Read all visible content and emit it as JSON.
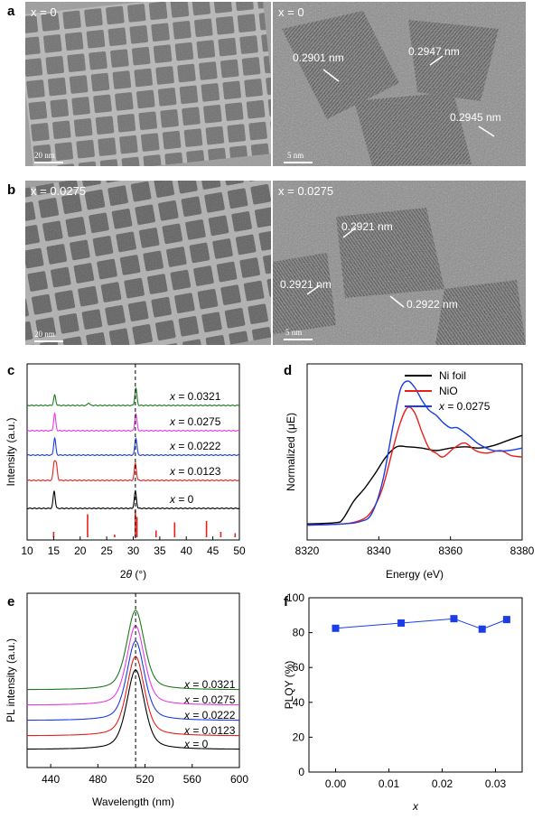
{
  "figure": {
    "panels": {
      "a": "a",
      "b": "b",
      "c": "c",
      "d": "d",
      "e": "e",
      "f": "f"
    },
    "tem": {
      "a_left": {
        "label": "x = 0",
        "scale": "20 nm"
      },
      "a_right": {
        "label": "x = 0",
        "scale": "5 nm",
        "spacings": [
          "0.2901 nm",
          "0.2947 nm",
          "0.2945 nm"
        ]
      },
      "b_left": {
        "label": "x = 0.0275",
        "scale": "20 nm"
      },
      "b_right": {
        "label": "x = 0.0275",
        "scale": "5 nm",
        "spacings": [
          "0.2921 nm",
          "0.2921 nm",
          "0.2922 nm"
        ]
      }
    }
  },
  "chart_data": [
    {
      "panel": "c",
      "type": "line",
      "xlabel": "2θ (°)",
      "ylabel": "Intensity (a.u.)",
      "xlim": [
        10,
        50
      ],
      "xticks": [
        10,
        15,
        20,
        25,
        30,
        35,
        40,
        45,
        50
      ],
      "dashed_x": 30.4,
      "series": [
        {
          "name": "x = 0",
          "color": "#000000",
          "peaks": [
            [
              15.1,
              1.0
            ],
            [
              30.4,
              1.0
            ]
          ]
        },
        {
          "name": "x = 0.0123",
          "color": "#e8201c",
          "peaks": [
            [
              15.1,
              1.0
            ],
            [
              15.5,
              0.9
            ],
            [
              30.4,
              1.0
            ]
          ]
        },
        {
          "name": "x = 0.0222",
          "color": "#1a3de8",
          "peaks": [
            [
              15.2,
              1.0
            ],
            [
              30.5,
              1.0
            ]
          ]
        },
        {
          "name": "x = 0.0275",
          "color": "#e63ce6",
          "peaks": [
            [
              15.2,
              1.0
            ],
            [
              30.5,
              1.0
            ]
          ]
        },
        {
          "name": "x = 0.0321",
          "color": "#1f7a1f",
          "peaks": [
            [
              15.2,
              0.6
            ],
            [
              21.6,
              0.15
            ],
            [
              30.5,
              1.0
            ]
          ]
        }
      ],
      "reference_sticks": [
        [
          15.0,
          0.2
        ],
        [
          21.4,
          0.85
        ],
        [
          26.5,
          0.1
        ],
        [
          30.4,
          1.0
        ],
        [
          30.7,
          0.75
        ],
        [
          34.3,
          0.25
        ],
        [
          37.8,
          0.55
        ],
        [
          43.8,
          0.6
        ],
        [
          46.5,
          0.2
        ],
        [
          49.2,
          0.15
        ]
      ]
    },
    {
      "panel": "d",
      "type": "line",
      "xlabel": "Energy (eV)",
      "ylabel": "Normalized (μE)",
      "xlim": [
        8320,
        8380
      ],
      "xticks": [
        8320,
        8340,
        8360,
        8380
      ],
      "series": [
        {
          "name": "Ni foil",
          "color": "#000000",
          "points": [
            [
              8320,
              0.02
            ],
            [
              8328,
              0.03
            ],
            [
              8330,
              0.06
            ],
            [
              8333,
              0.2
            ],
            [
              8336,
              0.3
            ],
            [
              8339,
              0.42
            ],
            [
              8342,
              0.55
            ],
            [
              8345,
              0.63
            ],
            [
              8348,
              0.63
            ],
            [
              8352,
              0.62
            ],
            [
              8356,
              0.6
            ],
            [
              8360,
              0.62
            ],
            [
              8364,
              0.63
            ],
            [
              8368,
              0.62
            ],
            [
              8372,
              0.64
            ],
            [
              8376,
              0.68
            ],
            [
              8380,
              0.72
            ]
          ]
        },
        {
          "name": "NiO",
          "color": "#e8201c",
          "points": [
            [
              8320,
              0.01
            ],
            [
              8330,
              0.02
            ],
            [
              8335,
              0.05
            ],
            [
              8338,
              0.12
            ],
            [
              8341,
              0.3
            ],
            [
              8344,
              0.62
            ],
            [
              8346,
              0.82
            ],
            [
              8348,
              0.94
            ],
            [
              8350,
              0.9
            ],
            [
              8352,
              0.75
            ],
            [
              8354,
              0.62
            ],
            [
              8356,
              0.58
            ],
            [
              8358,
              0.55
            ],
            [
              8361,
              0.62
            ],
            [
              8364,
              0.66
            ],
            [
              8367,
              0.6
            ],
            [
              8370,
              0.58
            ],
            [
              8374,
              0.6
            ],
            [
              8377,
              0.56
            ],
            [
              8380,
              0.55
            ]
          ]
        },
        {
          "name": "x = 0.0275",
          "color": "#1a3de8",
          "points": [
            [
              8320,
              0.01
            ],
            [
              8330,
              0.02
            ],
            [
              8335,
              0.04
            ],
            [
              8338,
              0.1
            ],
            [
              8341,
              0.35
            ],
            [
              8344,
              0.8
            ],
            [
              8346,
              1.08
            ],
            [
              8348,
              1.15
            ],
            [
              8350,
              1.1
            ],
            [
              8352,
              1.0
            ],
            [
              8354,
              0.92
            ],
            [
              8356,
              0.88
            ],
            [
              8358,
              0.82
            ],
            [
              8360,
              0.78
            ],
            [
              8362,
              0.78
            ],
            [
              8365,
              0.72
            ],
            [
              8368,
              0.65
            ],
            [
              8372,
              0.6
            ],
            [
              8376,
              0.6
            ],
            [
              8380,
              0.62
            ]
          ]
        }
      ]
    },
    {
      "panel": "e",
      "type": "line",
      "xlabel": "Wavelength (nm)",
      "ylabel": "PL intensity (a.u.)",
      "xlim": [
        420,
        600
      ],
      "xticks": [
        440,
        480,
        520,
        560,
        600
      ],
      "dashed_x": 512,
      "peak_nm": 512,
      "series": [
        {
          "name": "x = 0",
          "color": "#000000"
        },
        {
          "name": "x = 0.0123",
          "color": "#e8201c"
        },
        {
          "name": "x = 0.0222",
          "color": "#1a3de8"
        },
        {
          "name": "x = 0.0275",
          "color": "#e63ce6"
        },
        {
          "name": "x = 0.0321",
          "color": "#1f7a1f"
        }
      ]
    },
    {
      "panel": "f",
      "type": "scatter",
      "xlabel": "x",
      "ylabel": "PLQY (%)",
      "xlim": [
        -0.005,
        0.035
      ],
      "ylim": [
        0,
        100
      ],
      "xticks": [
        "0.00",
        "0.01",
        "0.02",
        "0.03"
      ],
      "yticks": [
        0,
        20,
        40,
        60,
        80,
        100
      ],
      "series": [
        {
          "name": "PLQY",
          "color": "#1a3de8",
          "x": [
            0.0,
            0.0123,
            0.0222,
            0.0275,
            0.0321
          ],
          "y": [
            82.5,
            85.5,
            88.0,
            82.0,
            87.5
          ]
        }
      ]
    }
  ]
}
